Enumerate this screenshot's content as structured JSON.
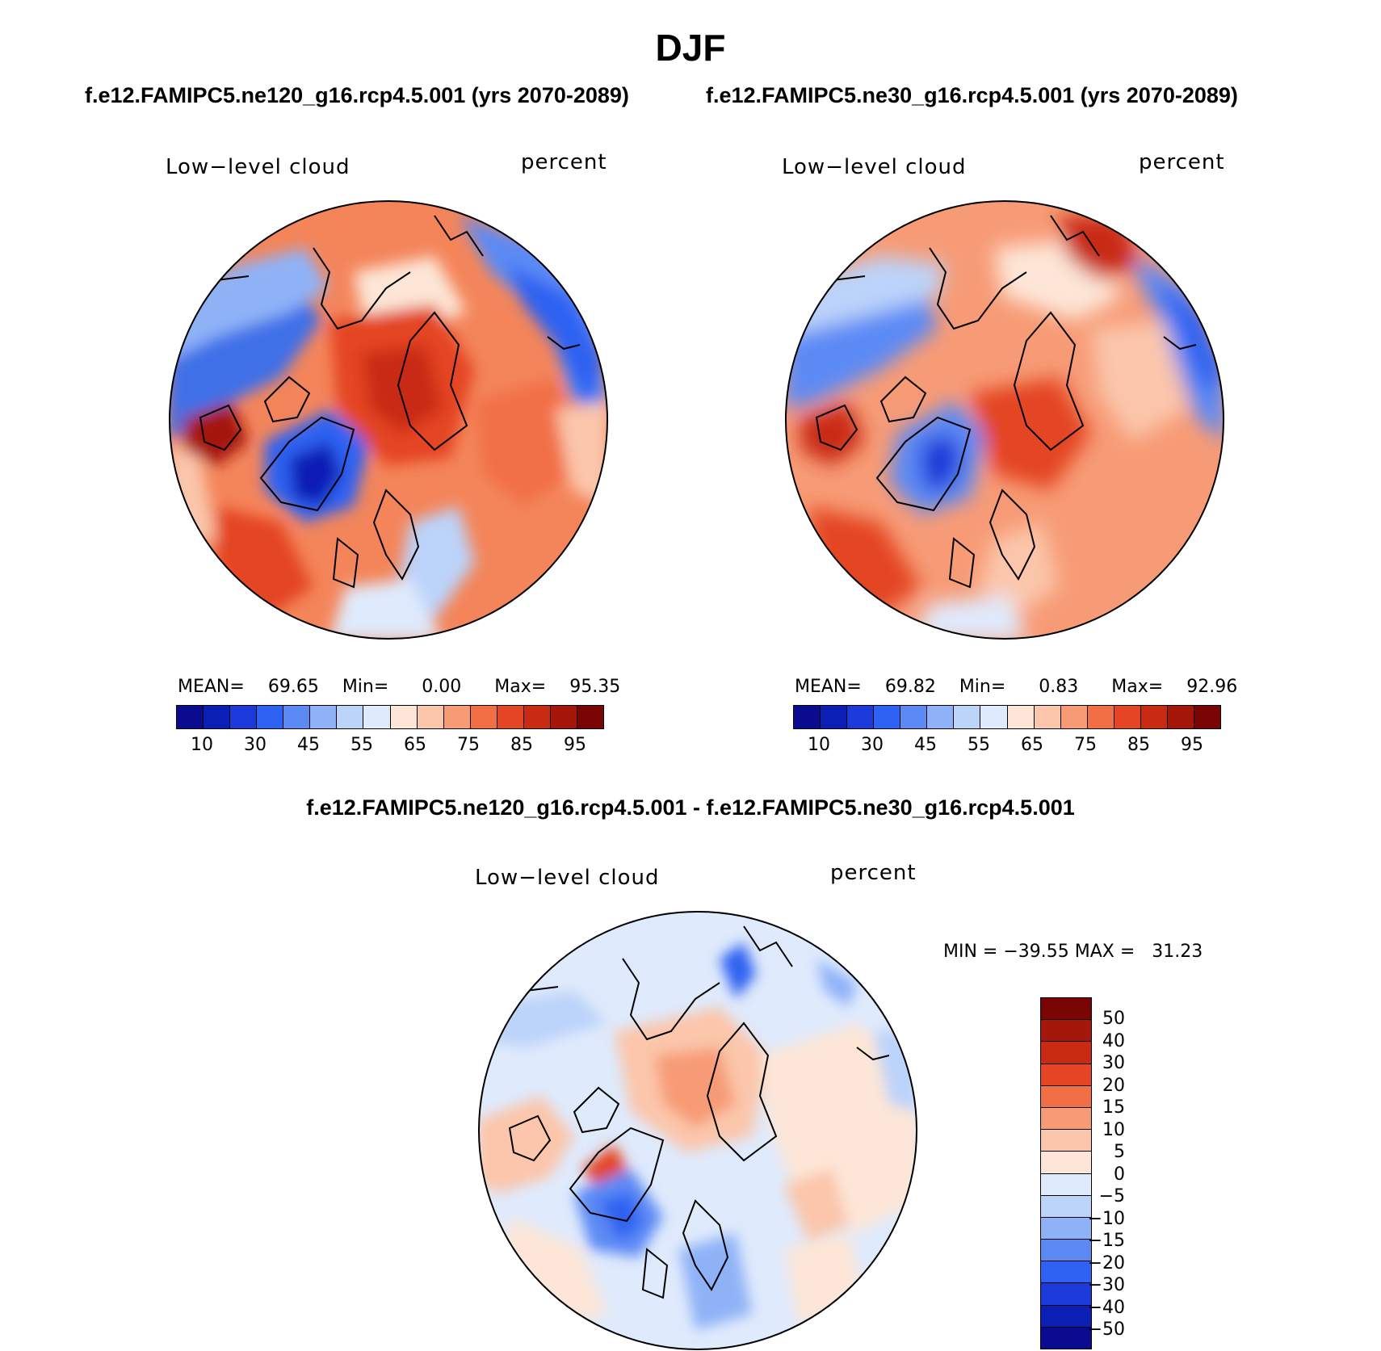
{
  "title": "DJF",
  "panels": {
    "left": {
      "case_title": "f.e12.FAMIPC5.ne120_g16.rcp4.5.001 (yrs 2070-2089)",
      "variable": "Low−level cloud",
      "units": "percent",
      "stats": {
        "mean_label": "MEAN=",
        "mean": "69.65",
        "min_label": "Min=",
        "min": "0.00",
        "max_label": "Max=",
        "max": "95.35"
      }
    },
    "right": {
      "case_title": "f.e12.FAMIPC5.ne30_g16.rcp4.5.001 (yrs 2070-2089)",
      "variable": "Low−level cloud",
      "units": "percent",
      "stats": {
        "mean_label": "MEAN=",
        "mean": "69.82",
        "min_label": "Min=",
        "min": "0.83",
        "max_label": "Max=",
        "max": "92.96"
      }
    },
    "diff": {
      "case_title": "f.e12.FAMIPC5.ne120_g16.rcp4.5.001 - f.e12.FAMIPC5.ne30_g16.rcp4.5.001",
      "variable": "Low−level cloud",
      "units": "percent",
      "minmax": "MIN = −39.55 MAX =   31.23"
    }
  },
  "colorbar_field": {
    "ticks": [
      "10",
      "30",
      "45",
      "55",
      "65",
      "75",
      "85",
      "95"
    ],
    "colors": [
      "#0b0b8f",
      "#0b1fb5",
      "#1a3bd9",
      "#2f62f2",
      "#5b8af5",
      "#8fb2f7",
      "#bcd3fa",
      "#dfeafc",
      "#fde6d7",
      "#fbc6ab",
      "#f79b76",
      "#f26f46",
      "#e44524",
      "#c92a12",
      "#a5170a",
      "#7a0505"
    ]
  },
  "colorbar_diff": {
    "ticks": [
      "50",
      "40",
      "30",
      "20",
      "15",
      "10",
      "5",
      "0",
      "−5",
      "−10",
      "−15",
      "−20",
      "−30",
      "−40",
      "−50"
    ],
    "colors": [
      "#7a0505",
      "#a5170a",
      "#c92a12",
      "#e44524",
      "#f26f46",
      "#f79b76",
      "#fbc6ab",
      "#fde6d7",
      "#dfeafc",
      "#bcd3fa",
      "#8fb2f7",
      "#5b8af5",
      "#2f62f2",
      "#1a3bd9",
      "#0b1fb5",
      "#0b0b8f"
    ]
  }
}
